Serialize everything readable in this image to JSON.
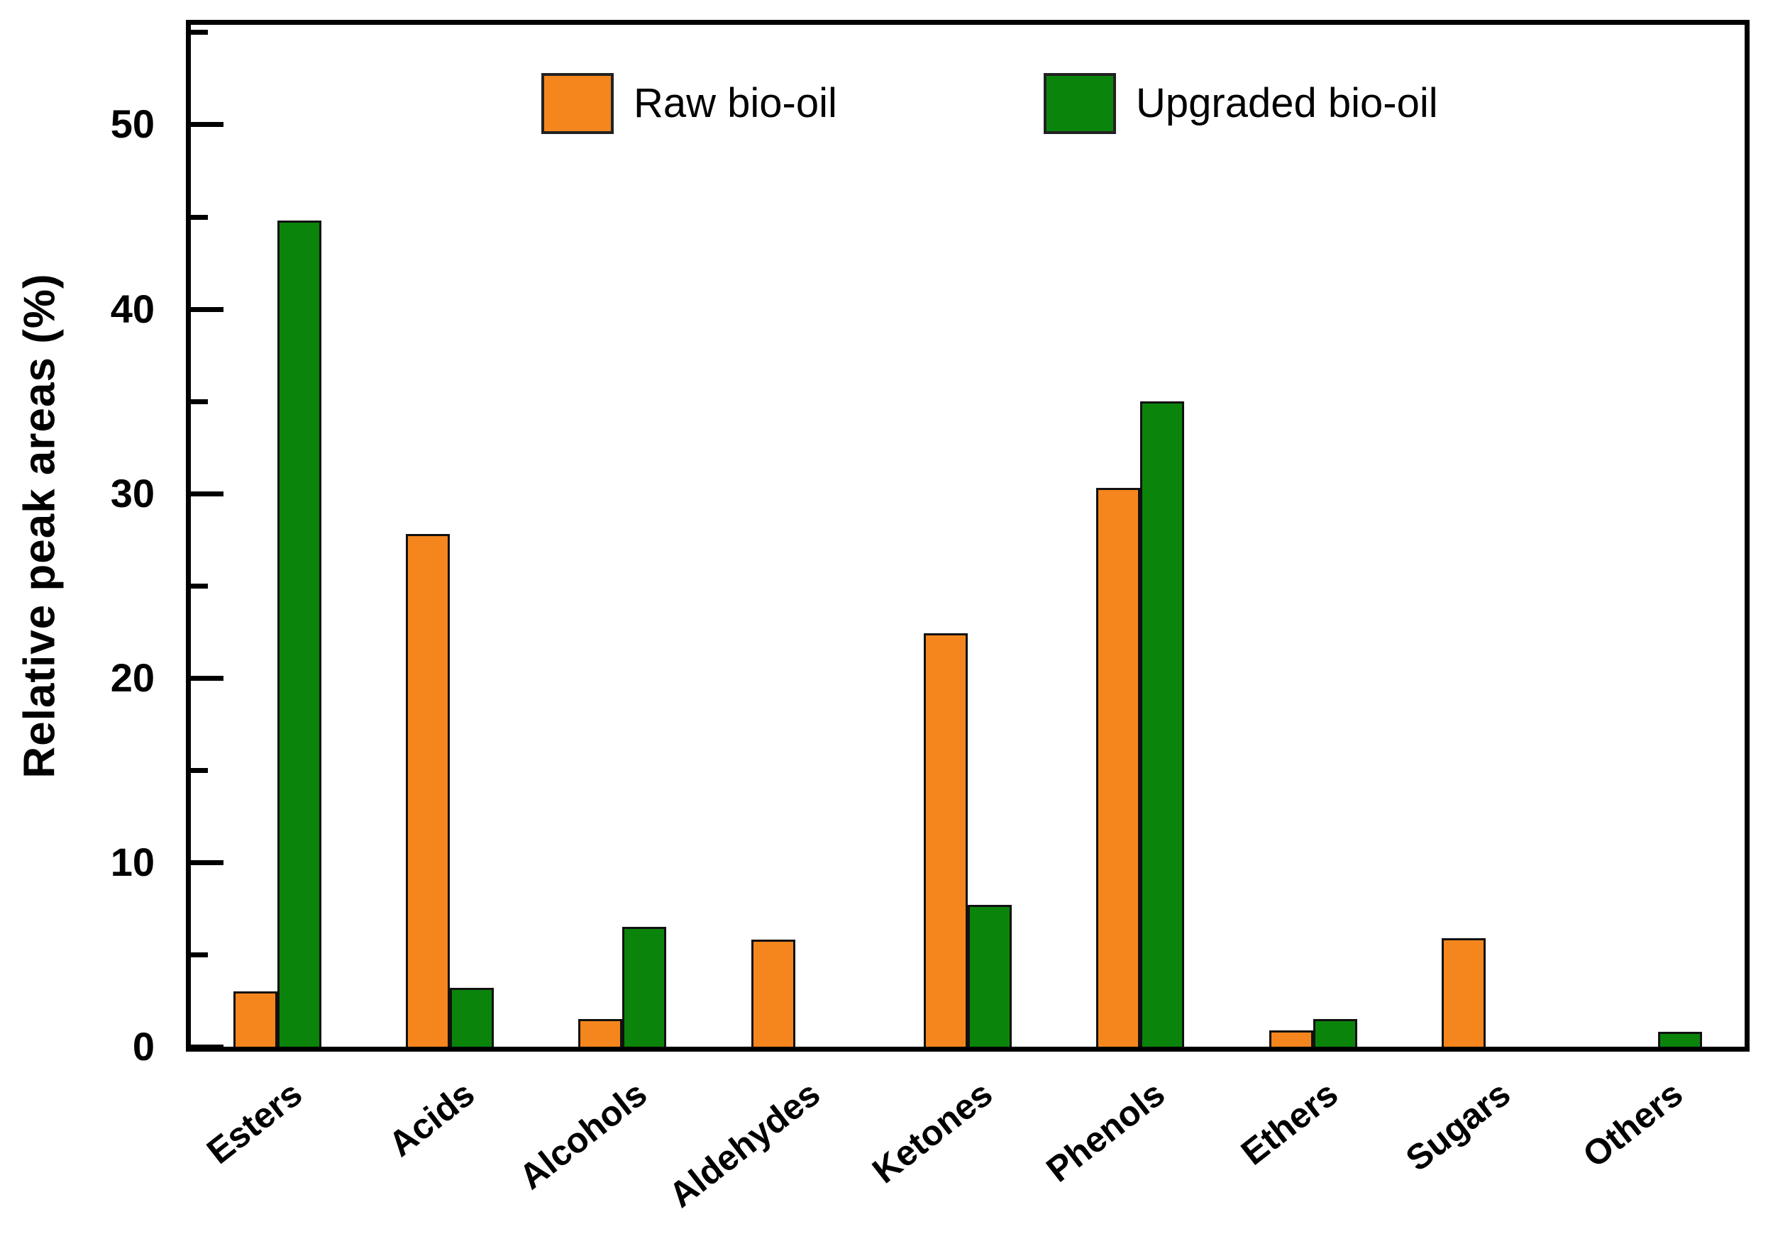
{
  "figure": {
    "background": "#ffffff",
    "axis_color": "#000000",
    "bar_stroke_color": "#111111"
  },
  "legend": {
    "raw_label": "Raw bio-oil",
    "upgraded_label": "Upgraded bio-oil"
  },
  "chart_data": {
    "type": "bar",
    "title": "",
    "xlabel": "",
    "ylabel": "Relative peak areas (%)",
    "ylim": [
      0,
      55.4
    ],
    "y_major_ticks": [
      0,
      10,
      20,
      30,
      40,
      50
    ],
    "y_minor_ticks": [
      5,
      15,
      25,
      35,
      45,
      55
    ],
    "grid": false,
    "legend_position": "top-inside",
    "categories": [
      "Esters",
      "Acids",
      "Alcohols",
      "Aldehydes",
      "Ketones",
      "Phenols",
      "Ethers",
      "Sugars",
      "Others"
    ],
    "series": [
      {
        "name": "Raw bio-oil",
        "color": "#F5861D",
        "values": [
          3.0,
          27.8,
          1.5,
          5.8,
          22.4,
          30.3,
          0.9,
          5.9,
          0
        ]
      },
      {
        "name": "Upgraded bio-oil",
        "color": "#0B840B",
        "values": [
          44.8,
          3.2,
          6.5,
          0,
          7.7,
          35.0,
          1.5,
          0,
          0.8
        ]
      }
    ]
  }
}
